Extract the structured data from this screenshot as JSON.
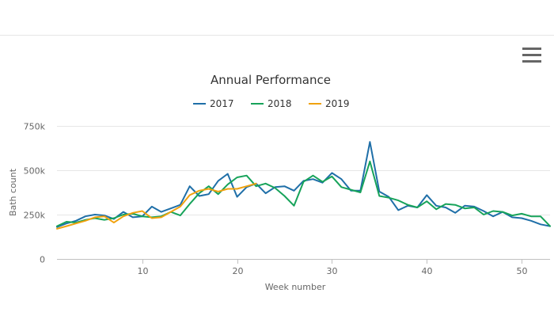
{
  "menu": {
    "icon": "hamburger-menu-icon"
  },
  "chart_data": {
    "type": "line",
    "title": "Annual Performance",
    "xlabel": "Week number",
    "ylabel": "Bath count",
    "xlim": [
      1,
      53
    ],
    "ylim": [
      0,
      750000
    ],
    "x_ticks": [
      10,
      20,
      30,
      40,
      50
    ],
    "y_ticks": [
      0,
      250000,
      500000,
      750000
    ],
    "y_tick_labels": [
      "0",
      "250k",
      "500k",
      "750k"
    ],
    "grid": "horizontal",
    "legend_position": "top-center",
    "series": [
      {
        "name": "2017",
        "color": "#1f6fa8",
        "start_week": 1,
        "values": [
          180000,
          200000,
          215000,
          240000,
          250000,
          245000,
          225000,
          265000,
          235000,
          240000,
          295000,
          265000,
          285000,
          305000,
          410000,
          355000,
          365000,
          440000,
          480000,
          350000,
          405000,
          425000,
          370000,
          405000,
          410000,
          385000,
          440000,
          450000,
          430000,
          485000,
          450000,
          385000,
          385000,
          660000,
          380000,
          350000,
          275000,
          300000,
          290000,
          360000,
          300000,
          290000,
          260000,
          300000,
          295000,
          270000,
          240000,
          265000,
          235000,
          230000,
          215000,
          195000,
          185000
        ]
      },
      {
        "name": "2018",
        "color": "#17a35a",
        "start_week": 1,
        "values": [
          185000,
          210000,
          205000,
          220000,
          230000,
          220000,
          230000,
          250000,
          255000,
          240000,
          235000,
          240000,
          265000,
          245000,
          310000,
          370000,
          410000,
          365000,
          420000,
          460000,
          470000,
          410000,
          425000,
          400000,
          355000,
          300000,
          435000,
          470000,
          435000,
          465000,
          405000,
          390000,
          375000,
          550000,
          355000,
          345000,
          330000,
          305000,
          290000,
          325000,
          280000,
          310000,
          305000,
          285000,
          290000,
          250000,
          270000,
          265000,
          245000,
          255000,
          240000,
          240000,
          185000
        ]
      },
      {
        "name": "2019",
        "color": "#f0a20f",
        "start_week": 1,
        "values": [
          170000,
          185000,
          200000,
          215000,
          235000,
          240000,
          205000,
          240000,
          260000,
          270000,
          230000,
          235000,
          265000,
          295000,
          360000,
          385000,
          395000,
          380000,
          395000,
          395000,
          410000,
          425000
        ]
      }
    ]
  }
}
